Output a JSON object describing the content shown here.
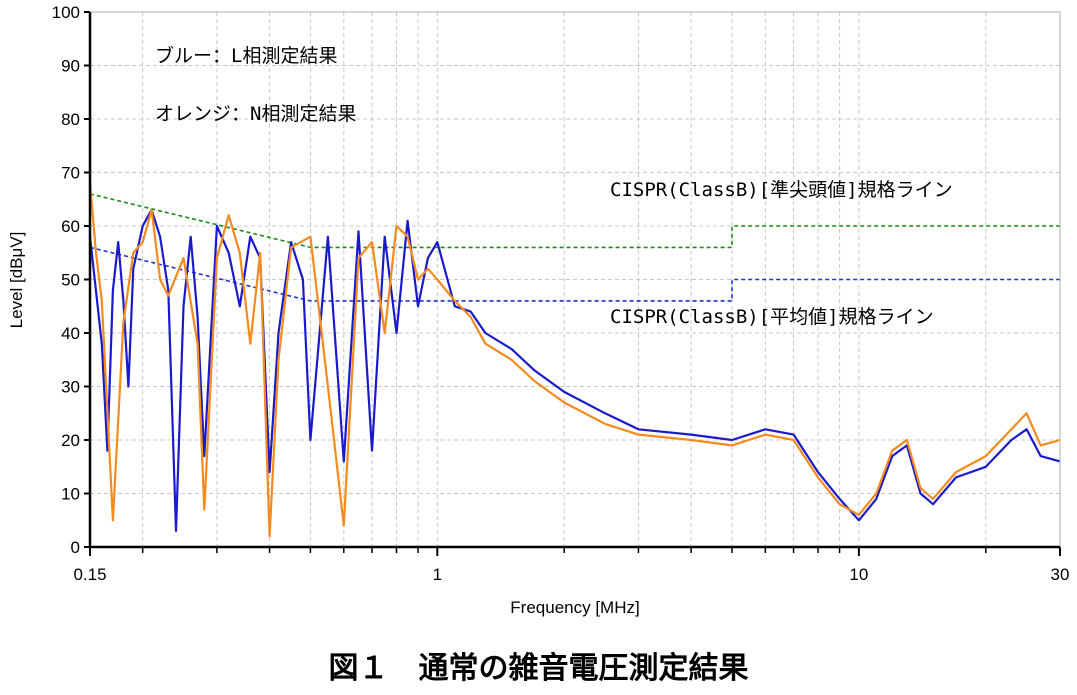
{
  "caption": "図１　通常の雑音電圧測定結果",
  "chart_data": {
    "type": "line",
    "x_scale": "log",
    "xlim": [
      0.15,
      30
    ],
    "ylim": [
      0,
      100
    ],
    "xlabel": "Frequency [MHz]",
    "ylabel": "Level [dBμV]",
    "x_tick_labels": [
      {
        "value": 0.15,
        "label": "0.15"
      },
      {
        "value": 1,
        "label": "1"
      },
      {
        "value": 10,
        "label": "10"
      },
      {
        "value": 30,
        "label": "30"
      }
    ],
    "y_ticks": [
      0,
      10,
      20,
      30,
      40,
      50,
      60,
      70,
      80,
      90,
      100
    ],
    "grid": true,
    "annotations": {
      "blue_note": "ブルー：L相測定結果",
      "orange_note": "オレンジ：N相測定結果",
      "qp_limit_label": "CISPR(ClassB)[準尖頭値]規格ライン",
      "avg_limit_label": "CISPR(ClassB)[平均値]規格ライン"
    },
    "series": [
      {
        "name": "CISPR(ClassB)[準尖頭値]規格ライン",
        "color": "#1a8a1a",
        "style": "dashed",
        "points": [
          [
            0.15,
            66
          ],
          [
            0.5,
            56
          ],
          [
            5,
            56
          ],
          [
            5,
            60
          ],
          [
            30,
            60
          ]
        ]
      },
      {
        "name": "CISPR(ClassB)[平均値]規格ライン",
        "color": "#2233cc",
        "style": "dashed",
        "points": [
          [
            0.15,
            56
          ],
          [
            0.5,
            46
          ],
          [
            5,
            46
          ],
          [
            5,
            50
          ],
          [
            30,
            50
          ]
        ]
      },
      {
        "name": "L相測定結果",
        "color": "#1a1acc",
        "style": "solid",
        "points": [
          [
            0.15,
            58
          ],
          [
            0.16,
            38
          ],
          [
            0.165,
            18
          ],
          [
            0.17,
            48
          ],
          [
            0.175,
            57
          ],
          [
            0.18,
            46
          ],
          [
            0.185,
            30
          ],
          [
            0.19,
            52
          ],
          [
            0.2,
            60
          ],
          [
            0.21,
            63
          ],
          [
            0.22,
            58
          ],
          [
            0.23,
            48
          ],
          [
            0.24,
            3
          ],
          [
            0.25,
            45
          ],
          [
            0.26,
            58
          ],
          [
            0.27,
            43
          ],
          [
            0.28,
            17
          ],
          [
            0.3,
            60
          ],
          [
            0.32,
            55
          ],
          [
            0.34,
            45
          ],
          [
            0.36,
            58
          ],
          [
            0.38,
            54
          ],
          [
            0.4,
            14
          ],
          [
            0.42,
            40
          ],
          [
            0.45,
            57
          ],
          [
            0.48,
            50
          ],
          [
            0.5,
            20
          ],
          [
            0.55,
            58
          ],
          [
            0.6,
            16
          ],
          [
            0.65,
            59
          ],
          [
            0.7,
            18
          ],
          [
            0.75,
            58
          ],
          [
            0.8,
            40
          ],
          [
            0.85,
            61
          ],
          [
            0.9,
            45
          ],
          [
            0.95,
            54
          ],
          [
            1.0,
            57
          ],
          [
            1.1,
            45
          ],
          [
            1.2,
            44
          ],
          [
            1.3,
            40
          ],
          [
            1.5,
            37
          ],
          [
            1.7,
            33
          ],
          [
            2,
            29
          ],
          [
            2.5,
            25
          ],
          [
            3,
            22
          ],
          [
            4,
            21
          ],
          [
            5,
            20
          ],
          [
            6,
            22
          ],
          [
            7,
            21
          ],
          [
            8,
            14
          ],
          [
            9,
            9
          ],
          [
            10,
            5
          ],
          [
            11,
            9
          ],
          [
            12,
            17
          ],
          [
            13,
            19
          ],
          [
            14,
            10
          ],
          [
            15,
            8
          ],
          [
            17,
            13
          ],
          [
            20,
            15
          ],
          [
            23,
            20
          ],
          [
            25,
            22
          ],
          [
            27,
            17
          ],
          [
            30,
            16
          ]
        ]
      },
      {
        "name": "N相測定結果",
        "color": "#f58a1f",
        "style": "solid",
        "points": [
          [
            0.15,
            68
          ],
          [
            0.155,
            55
          ],
          [
            0.16,
            46
          ],
          [
            0.17,
            5
          ],
          [
            0.18,
            42
          ],
          [
            0.19,
            55
          ],
          [
            0.2,
            57
          ],
          [
            0.21,
            63
          ],
          [
            0.22,
            50
          ],
          [
            0.23,
            47
          ],
          [
            0.25,
            54
          ],
          [
            0.27,
            38
          ],
          [
            0.28,
            7
          ],
          [
            0.3,
            54
          ],
          [
            0.32,
            62
          ],
          [
            0.34,
            55
          ],
          [
            0.36,
            38
          ],
          [
            0.38,
            55
          ],
          [
            0.4,
            2
          ],
          [
            0.42,
            35
          ],
          [
            0.45,
            56
          ],
          [
            0.5,
            58
          ],
          [
            0.55,
            30
          ],
          [
            0.6,
            4
          ],
          [
            0.65,
            54
          ],
          [
            0.7,
            57
          ],
          [
            0.75,
            40
          ],
          [
            0.8,
            60
          ],
          [
            0.85,
            58
          ],
          [
            0.9,
            50
          ],
          [
            0.95,
            52
          ],
          [
            1.0,
            50
          ],
          [
            1.1,
            46
          ],
          [
            1.2,
            43
          ],
          [
            1.3,
            38
          ],
          [
            1.5,
            35
          ],
          [
            1.7,
            31
          ],
          [
            2,
            27
          ],
          [
            2.5,
            23
          ],
          [
            3,
            21
          ],
          [
            4,
            20
          ],
          [
            5,
            19
          ],
          [
            6,
            21
          ],
          [
            7,
            20
          ],
          [
            8,
            13
          ],
          [
            9,
            8
          ],
          [
            10,
            6
          ],
          [
            11,
            10
          ],
          [
            12,
            18
          ],
          [
            13,
            20
          ],
          [
            14,
            11
          ],
          [
            15,
            9
          ],
          [
            17,
            14
          ],
          [
            20,
            17
          ],
          [
            23,
            22
          ],
          [
            25,
            25
          ],
          [
            27,
            19
          ],
          [
            30,
            20
          ]
        ]
      }
    ]
  }
}
